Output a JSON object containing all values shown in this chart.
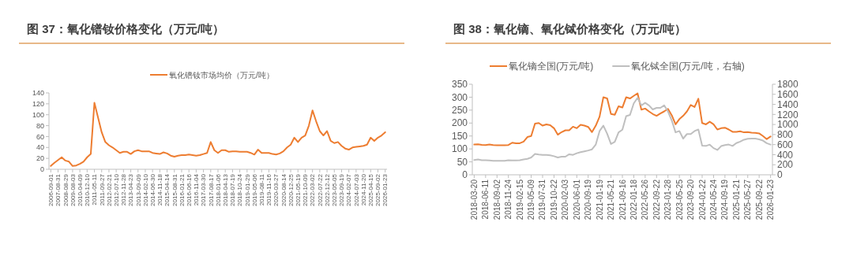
{
  "chart_data": [
    {
      "type": "line",
      "title": "图 37：氧化镨钕价格变化（万元/吨）",
      "categories": [
        "2006-09-01",
        null,
        "2007-08-31",
        null,
        "2008-08-29",
        null,
        "2009-08-03",
        null,
        "2010-04-09",
        null,
        "2010-12-10",
        null,
        "2011-05-11",
        null,
        "2011-09-27",
        null,
        "2012-02-21",
        null,
        "2012-07-10",
        null,
        "2012-11-28",
        null,
        "2013-04-23",
        null,
        "2013-09-09",
        null,
        "2014-02-10",
        null,
        "2014-06-30",
        null,
        "2014-11-18",
        null,
        "2015-04-14",
        null,
        "2015-08-31",
        null,
        "2016-01-21",
        null,
        "2016-06-16",
        null,
        "2016-11-04",
        null,
        "2017-03-30",
        null,
        "2017-08-17",
        null,
        "2018-01-06",
        null,
        "2018-04-13",
        null,
        "2018-07-19",
        null,
        "2018-10-24",
        null,
        "2019-01-29",
        null,
        "2019-05-06",
        null,
        "2019-08-11",
        null,
        "2019-11-16",
        null,
        "2020-03-27",
        null,
        "2020-08-14",
        null,
        "2020-12-25",
        null,
        "2021-05-19",
        null,
        "2021-10-09",
        null,
        "2022-03-02",
        null,
        "2022-07-22",
        null,
        "2022-12-12",
        null,
        "2023-05-05",
        null,
        "2023-09-19",
        null,
        "2024-02-07",
        null,
        "2024-07-03",
        null,
        "2024-11-20",
        null,
        "2025-04-15",
        null,
        "2025-09-02",
        null,
        "2026-01-23"
      ],
      "series": [
        {
          "name": "氧化镨钕市场均价（万元/吨）",
          "color": "#ed7d31",
          "values": [
            6,
            12,
            17,
            22,
            16,
            14,
            6,
            7,
            10,
            14,
            22,
            28,
            122,
            95,
            68,
            50,
            44,
            40,
            35,
            30,
            32,
            32,
            28,
            33,
            35,
            33,
            33,
            33,
            30,
            29,
            28,
            31,
            29,
            25,
            23,
            25,
            26,
            26,
            27,
            26,
            25,
            26,
            28,
            30,
            50,
            35,
            30,
            35,
            35,
            32,
            33,
            33,
            32,
            32,
            32,
            30,
            27,
            36,
            30,
            30,
            30,
            28,
            27,
            29,
            33,
            40,
            45,
            58,
            50,
            58,
            62,
            80,
            108,
            88,
            70,
            62,
            70,
            52,
            48,
            50,
            43,
            38,
            36,
            40,
            41,
            42,
            43,
            45,
            58,
            52,
            58,
            62,
            68
          ]
        }
      ],
      "ylim": [
        0,
        140
      ],
      "yticks": [
        0,
        20,
        40,
        60,
        80,
        100,
        120,
        140
      ],
      "legend": "top"
    },
    {
      "type": "line",
      "title": "图 38：氧化镝、氧化铽价格变化（万元/吨）",
      "categories": [
        "2018-03-20",
        null,
        null,
        "2018-06-11",
        null,
        null,
        "2018-09-02",
        null,
        null,
        "2018-11-24",
        null,
        null,
        "2019-02-15",
        null,
        null,
        "2019-05-09",
        null,
        null,
        "2019-07-31",
        null,
        null,
        "2019-10-22",
        null,
        null,
        "2020-02-03",
        null,
        null,
        "2020-06-01",
        null,
        null,
        "2020-09-19",
        null,
        null,
        "2021-01-19",
        null,
        null,
        "2021-05-21",
        null,
        null,
        "2021-09-16",
        null,
        null,
        "2022-01-18",
        null,
        null,
        "2022-05-26",
        null,
        null,
        "2022-09-22",
        null,
        null,
        "2023-01-28",
        null,
        null,
        "2023-05-25",
        null,
        null,
        "2023-09-20",
        null,
        null,
        "2024-01-22",
        null,
        null,
        "2024-05-24",
        null,
        null,
        "2024-09-19",
        null,
        null,
        "2025-01-21",
        null,
        null,
        "2025-05-27",
        null,
        null,
        "2025-09-22",
        null,
        null,
        "2026-01-23"
      ],
      "series": [
        {
          "name": "氧化镝全国(万元/吨)",
          "color": "#ed7d31",
          "values": [
            117,
            118,
            116,
            115,
            117,
            115,
            114,
            114,
            114,
            115,
            124,
            122,
            122,
            128,
            146,
            150,
            198,
            200,
            190,
            195,
            192,
            180,
            155,
            165,
            172,
            172,
            186,
            180,
            193,
            190,
            185,
            165,
            190,
            225,
            300,
            295,
            235,
            232,
            265,
            260,
            300,
            295,
            305,
            315,
            252,
            256,
            245,
            235,
            228,
            237,
            245,
            255,
            230,
            195,
            215,
            228,
            245,
            270,
            262,
            294,
            200,
            195,
            205,
            195,
            175,
            180,
            182,
            175,
            166,
            166,
            168,
            164,
            165,
            163,
            162,
            160,
            150,
            138,
            148
          ]
        },
        {
          "name": "氧化铽全国(万元/吨，右轴)",
          "color": "#bfbfbf",
          "axis": "y2",
          "values": [
            295,
            306,
            290,
            290,
            285,
            279,
            279,
            279,
            279,
            290,
            285,
            285,
            290,
            306,
            317,
            344,
            413,
            403,
            397,
            397,
            386,
            370,
            344,
            360,
            360,
            408,
            397,
            429,
            451,
            467,
            483,
            505,
            601,
            870,
            977,
            816,
            612,
            655,
            843,
            896,
            1165,
            1190,
            1420,
            1530,
            1380,
            1430,
            1380,
            1299,
            1330,
            1330,
            1380,
            1260,
            1080,
            843,
            870,
            720,
            810,
            810,
            870,
            900,
            580,
            574,
            600,
            530,
            494,
            570,
            590,
            601,
            574,
            630,
            660,
            698,
            715,
            719,
            719,
            705,
            680,
            628,
            601
          ]
        }
      ],
      "ylim": [
        0,
        350
      ],
      "yticks": [
        0,
        50,
        100,
        150,
        200,
        250,
        300,
        350
      ],
      "y2lim": [
        0,
        1800
      ],
      "y2ticks": [
        0,
        200,
        400,
        600,
        800,
        1000,
        1200,
        1400,
        1600,
        1800
      ],
      "legend": "top"
    }
  ]
}
